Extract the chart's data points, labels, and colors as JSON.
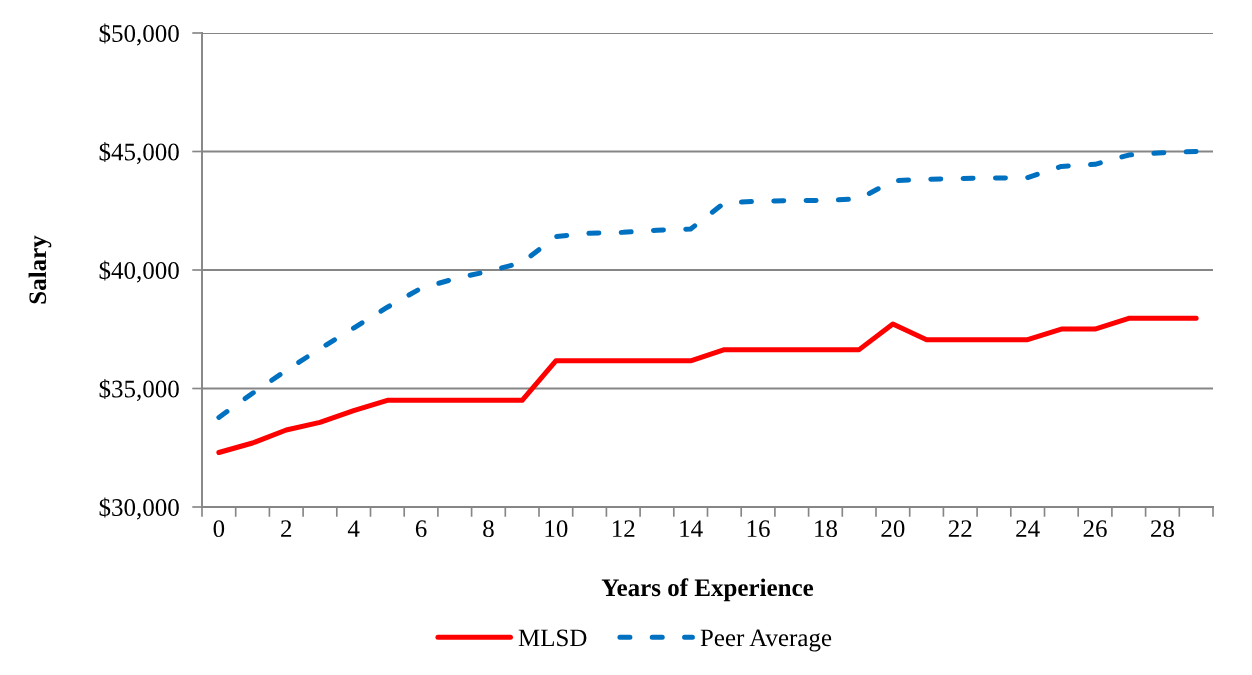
{
  "chart_data": {
    "type": "line",
    "xlabel": "Years of Experience",
    "ylabel": "Salary",
    "categories": [
      "0",
      null,
      "2",
      null,
      "4",
      null,
      "6",
      null,
      "8",
      null,
      "10",
      null,
      "12",
      null,
      "14",
      null,
      "16",
      null,
      "18",
      null,
      "20",
      null,
      "22",
      null,
      "24",
      null,
      "26",
      null,
      "28",
      null
    ],
    "series": [
      {
        "name": "MLSD",
        "color": "#ff0000",
        "line_style": "solid",
        "values": [
          32300,
          32700,
          33250,
          33570,
          34070,
          34500,
          34500,
          34500,
          34500,
          34500,
          36170,
          36170,
          36170,
          36170,
          36170,
          36640,
          36640,
          36640,
          36640,
          36640,
          37720,
          37060,
          37060,
          37060,
          37060,
          37510,
          37510,
          37960,
          37960,
          37960
        ]
      },
      {
        "name": "Peer Average",
        "color": "#0070c0",
        "line_style": "dashed",
        "values": [
          33780,
          34800,
          35760,
          36680,
          37550,
          38430,
          39230,
          39630,
          39950,
          40310,
          41410,
          41550,
          41590,
          41680,
          41730,
          42830,
          42900,
          42930,
          42940,
          43000,
          43760,
          43830,
          43860,
          43880,
          43900,
          44370,
          44460,
          44850,
          44950,
          45000
        ]
      }
    ],
    "ylim": [
      30000,
      50000
    ],
    "yticks": [
      {
        "value": 30000,
        "label": "$30,000"
      },
      {
        "value": 35000,
        "label": "$35,000"
      },
      {
        "value": 40000,
        "label": "$40,000"
      },
      {
        "value": 45000,
        "label": "$45,000"
      },
      {
        "value": 50000,
        "label": "$50,000"
      }
    ],
    "grid": "y",
    "legend": "bottom",
    "marker": "none"
  }
}
